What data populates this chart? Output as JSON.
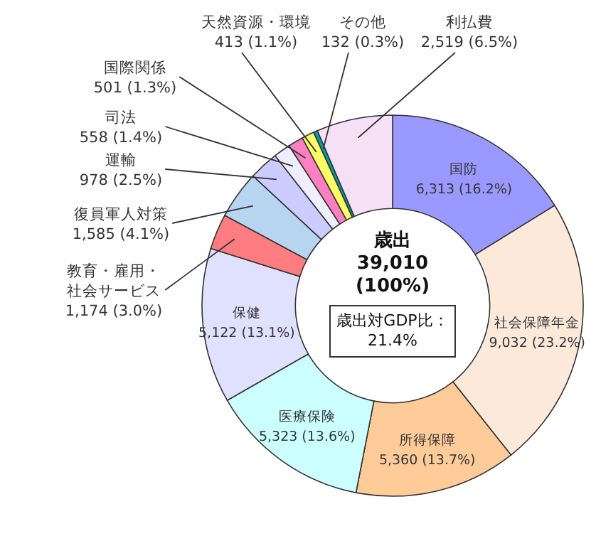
{
  "chart_data": {
    "type": "donut",
    "categories": [
      "国防",
      "社会保障年金",
      "所得保障",
      "医療保険",
      "保健",
      "教育・雇用・社会サービス",
      "復員軍人対策",
      "運輸",
      "司法",
      "国際関係",
      "天然資源・環境",
      "その他",
      "利払費"
    ],
    "values": [
      6313,
      9032,
      5360,
      5323,
      5122,
      1174,
      1585,
      978,
      558,
      501,
      413,
      132,
      2519
    ],
    "value_labels": [
      "6,313 (16.2%)",
      "9,032 (23.2%)",
      "5,360 (13.7%)",
      "5,323 (13.6%)",
      "5,122 (13.1%)",
      "1,174 (3.0%)",
      "1,585 (4.1%)",
      "978 (2.5%)",
      "558 (1.4%)",
      "501 (1.3%)",
      "413 (1.1%)",
      "132 (0.3%)",
      "2,519 (6.5%)"
    ],
    "colors": [
      "#9999ff",
      "#fde9d9",
      "#ffcc99",
      "#ccffff",
      "#e0e0ff",
      "#ff7c80",
      "#b7d5f0",
      "#ccccff",
      "#eeeeff",
      "#ff80c0",
      "#ffff66",
      "#00a0a0",
      "#f5e0f5"
    ],
    "annotations": [
      "歳出",
      "39,010",
      "(100%)",
      "歳出対GDP比：21.4%"
    ]
  }
}
